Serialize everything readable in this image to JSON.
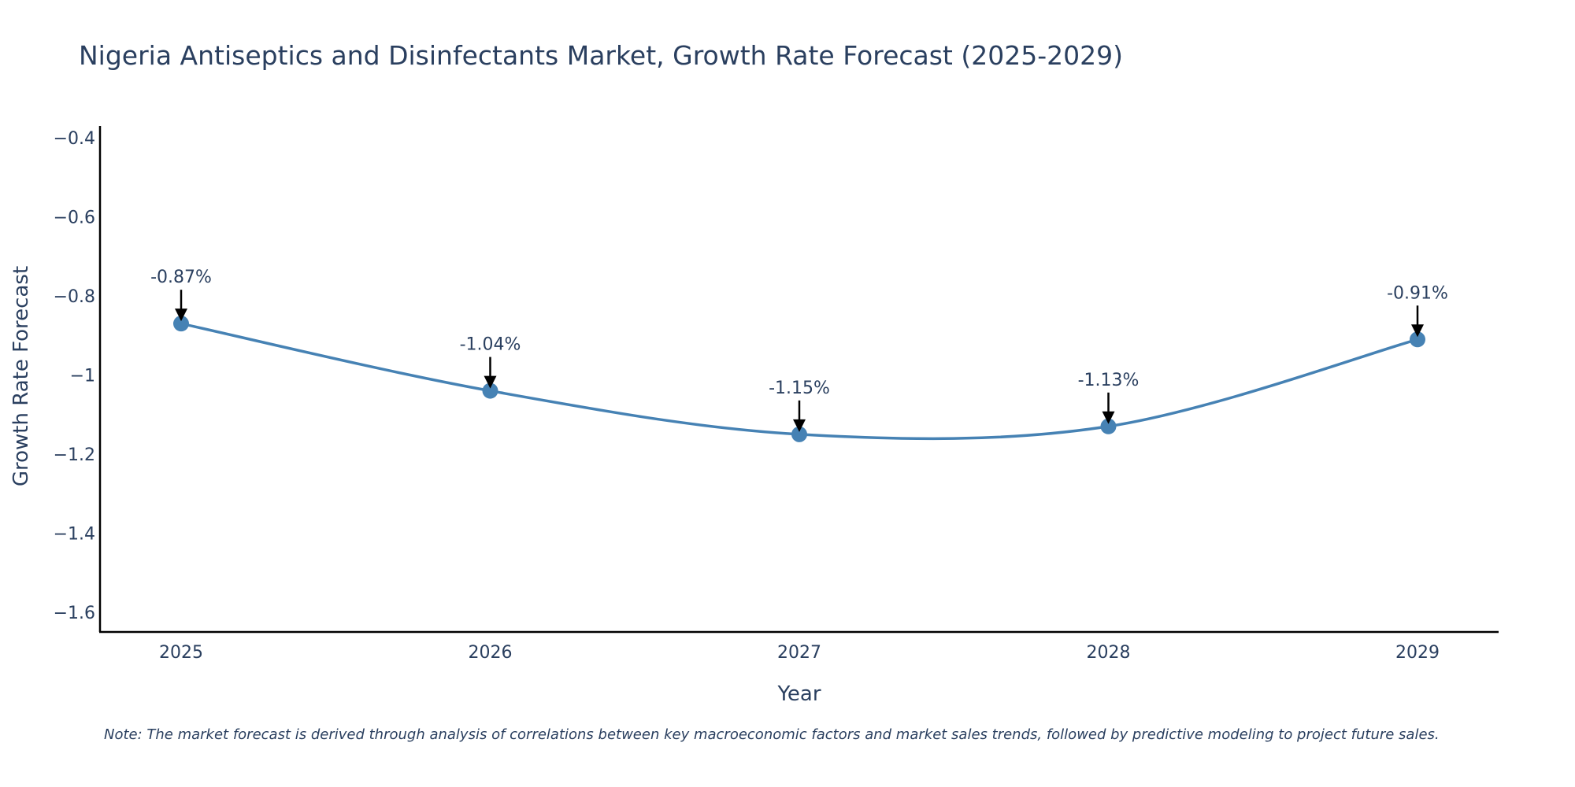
{
  "chart_data": {
    "type": "line",
    "title": "Nigeria Antiseptics and Disinfectants Market, Growth Rate Forecast (2025-2029)",
    "xlabel": "Year",
    "ylabel": "Growth Rate Forecast",
    "x": [
      "2025",
      "2026",
      "2027",
      "2028",
      "2029"
    ],
    "values": [
      -0.87,
      -1.04,
      -1.15,
      -1.13,
      -0.91
    ],
    "data_labels": [
      "-0.87%",
      "-1.04%",
      "-1.15%",
      "-1.13%",
      "-0.91%"
    ],
    "ylim": [
      -1.65,
      -0.37
    ],
    "yticks": [
      -0.4,
      -0.6,
      -0.8,
      -1.0,
      -1.2,
      -1.4,
      -1.6
    ],
    "ytick_labels": [
      "−0.4",
      "−0.6",
      "−0.8",
      "−1",
      "−1.2",
      "−1.4",
      "−1.6"
    ],
    "grid": false,
    "legend": "none",
    "line_color": "#4682b4",
    "marker_color": "#4682b4",
    "arrow_color": "#000000",
    "note": "Note: The market forecast is derived through analysis of correlations between key macroeconomic factors and market sales trends, followed by predictive modeling to project future sales."
  }
}
